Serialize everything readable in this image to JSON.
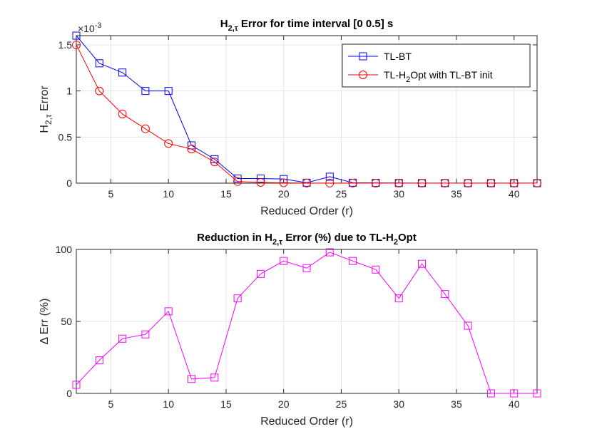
{
  "chart_data": [
    {
      "type": "line",
      "title": "H2,τ Error for time interval [0 0.5] s",
      "title_parts": {
        "prefix": "H",
        "sub": "2,τ",
        "suffix": " Error for time interval [0 0.5] s"
      },
      "xlabel": "Reduced Order (r)",
      "ylabel": "H2,τ Error",
      "ylabel_parts": {
        "prefix": "H",
        "sub": "2,τ",
        "suffix": " Error"
      },
      "exponent_label": "×10",
      "exponent_power": "-3",
      "xlim": [
        2,
        42
      ],
      "ylim": [
        0,
        1.6
      ],
      "xticks": [
        5,
        10,
        15,
        20,
        25,
        30,
        35,
        40
      ],
      "yticks": [
        0,
        0.5,
        1,
        1.5
      ],
      "ytick_labels": [
        "0",
        "0.5",
        "1",
        "1.5"
      ],
      "grid": true,
      "legend_position": "top-right",
      "x": [
        2,
        4,
        6,
        8,
        10,
        12,
        14,
        16,
        18,
        20,
        22,
        24,
        26,
        28,
        30,
        32,
        34,
        36,
        38,
        40,
        42
      ],
      "series": [
        {
          "name": "TL-BT",
          "legend_parts": {
            "prefix": "TL-BT",
            "sub": "",
            "suffix": ""
          },
          "color": "#0000FF",
          "marker": "square",
          "values": [
            1.6,
            1.3,
            1.2,
            1.0,
            1.0,
            0.41,
            0.26,
            0.05,
            0.05,
            0.045,
            0.005,
            0.07,
            0.005,
            0.003,
            0.002,
            0.001,
            0.001,
            0.0005,
            0.0005,
            0.0005,
            0.0005
          ]
        },
        {
          "name": "TL-H2Opt with TL-BT init",
          "legend_parts": {
            "prefix": "TL-H",
            "sub": "2",
            "suffix": "Opt with TL-BT init"
          },
          "color": "#FF0000",
          "marker": "circle",
          "values": [
            1.5,
            1.0,
            0.75,
            0.59,
            0.43,
            0.37,
            0.23,
            0.017,
            0.008,
            0.004,
            0.001,
            0.001,
            0.0008,
            0.0004,
            0.0004,
            0.0002,
            0.0002,
            0.0002,
            0.0001,
            0.0001,
            0.0001
          ]
        }
      ]
    },
    {
      "type": "line",
      "title": "Reduction in H2,τ Error (%) due to TL-H2Opt",
      "title_parts": {
        "prefix": "Reduction in H",
        "sub": "2,τ",
        "middle": " Error (%) due to TL-H",
        "sub2": "2",
        "suffix": "Opt"
      },
      "xlabel": "Reduced Order (r)",
      "ylabel": "Δ Err (%)",
      "xlim": [
        2,
        42
      ],
      "ylim": [
        0,
        100
      ],
      "xticks": [
        5,
        10,
        15,
        20,
        25,
        30,
        35,
        40
      ],
      "yticks": [
        0,
        50,
        100
      ],
      "ytick_labels": [
        "0",
        "50",
        "100"
      ],
      "grid": true,
      "x": [
        2,
        4,
        6,
        8,
        10,
        12,
        14,
        16,
        18,
        20,
        22,
        24,
        26,
        28,
        30,
        32,
        34,
        36,
        38,
        40,
        42
      ],
      "series": [
        {
          "name": "Reduction",
          "color": "#FF00FF",
          "marker": "square",
          "values": [
            6,
            23,
            38,
            41,
            57,
            10,
            11,
            66,
            83,
            92,
            87,
            98,
            92,
            86,
            66,
            90,
            69,
            47,
            0,
            0,
            0
          ]
        }
      ]
    }
  ]
}
